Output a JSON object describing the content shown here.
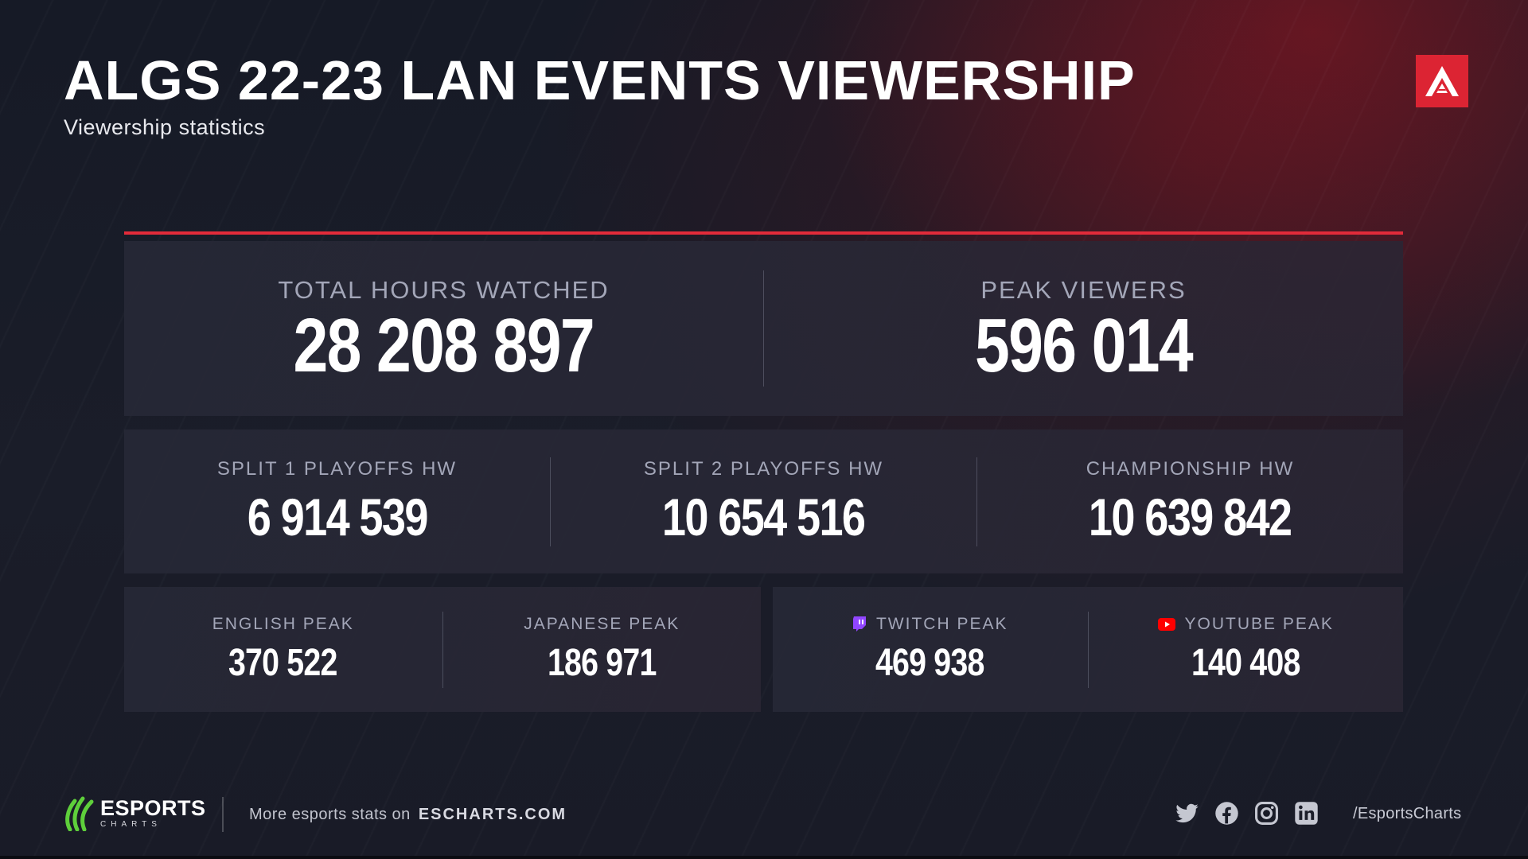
{
  "header": {
    "title": "ALGS 22-23 LAN EVENTS VIEWERSHIP",
    "subtitle": "Viewership statistics",
    "brand_icon": "apex-legends-logo",
    "brand_color": "#dc2433"
  },
  "accent_color": "#e22b3a",
  "main_stats": [
    {
      "label": "TOTAL HOURS WATCHED",
      "value": "28 208 897"
    },
    {
      "label": "PEAK VIEWERS",
      "value": "596 014"
    }
  ],
  "hours_by_stage": [
    {
      "label": "SPLIT 1 PLAYOFFS HW",
      "value": "6 914 539"
    },
    {
      "label": "SPLIT 2 PLAYOFFS HW",
      "value": "10 654 516"
    },
    {
      "label": "CHAMPIONSHIP HW",
      "value": "10 639 842"
    }
  ],
  "language_peaks": [
    {
      "label": "ENGLISH PEAK",
      "value": "370 522"
    },
    {
      "label": "JAPANESE PEAK",
      "value": "186 971"
    }
  ],
  "platform_peaks": [
    {
      "label": "TWITCH PEAK",
      "value": "469 938",
      "icon": "twitch-icon",
      "color": "#9146ff"
    },
    {
      "label": "YOUTUBE PEAK",
      "value": "140 408",
      "icon": "youtube-icon",
      "color": "#ff0000"
    }
  ],
  "footer": {
    "logo_main": "ESPORTS",
    "logo_sub": "CHARTS",
    "logo_color": "#5ecf3b",
    "more_text": "More esports stats on",
    "site": "ESCHARTS.COM",
    "social_icons": [
      "twitter-icon",
      "facebook-icon",
      "instagram-icon",
      "linkedin-icon"
    ],
    "handle": "/EsportsCharts"
  }
}
